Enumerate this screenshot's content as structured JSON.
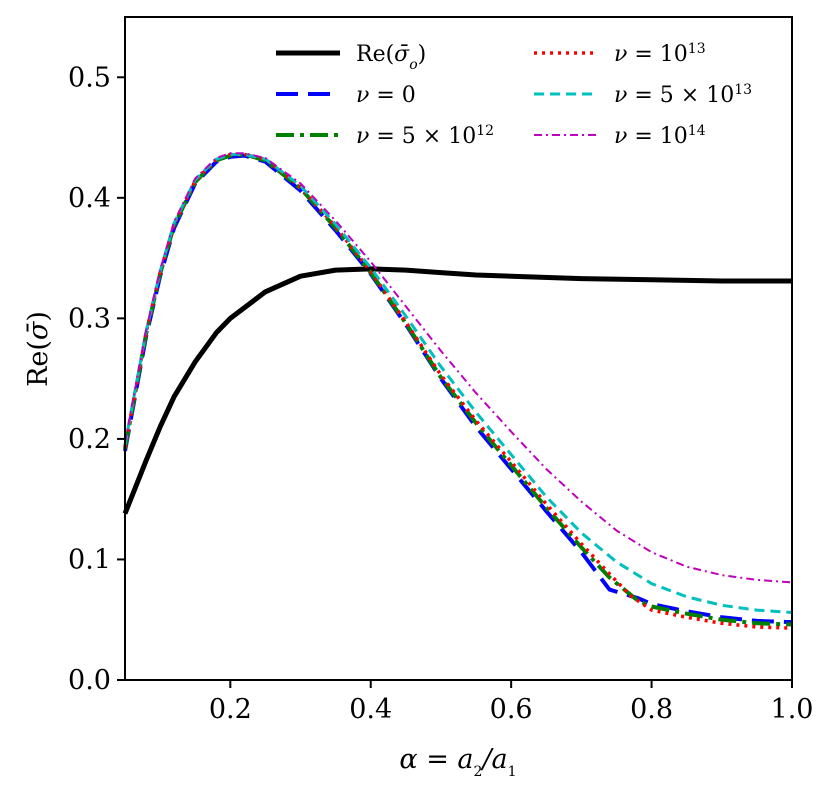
{
  "chart_data": {
    "type": "line",
    "xlabel": "α = a₂/a₁",
    "ylabel": "Re(σ̄)",
    "xlim": [
      0.05,
      1.0
    ],
    "ylim": [
      0.0,
      0.55
    ],
    "xticks": [
      0.2,
      0.4,
      0.6,
      0.8,
      1.0
    ],
    "xtick_labels": [
      "0.2",
      "0.4",
      "0.6",
      "0.8",
      "1.0"
    ],
    "yticks": [
      0.0,
      0.1,
      0.2,
      0.3,
      0.4,
      0.5
    ],
    "ytick_labels": [
      "0.0",
      "0.1",
      "0.2",
      "0.3",
      "0.4",
      "0.5"
    ],
    "grid": false,
    "legend_position": "top",
    "series": [
      {
        "name": "Re(σ̄ₒ)",
        "color": "#000000",
        "style": "solid",
        "x": [
          0.05,
          0.08,
          0.1,
          0.12,
          0.15,
          0.18,
          0.2,
          0.25,
          0.3,
          0.35,
          0.4,
          0.45,
          0.5,
          0.55,
          0.6,
          0.7,
          0.8,
          0.9,
          1.0
        ],
        "y": [
          0.138,
          0.182,
          0.21,
          0.235,
          0.264,
          0.288,
          0.3,
          0.322,
          0.335,
          0.34,
          0.341,
          0.34,
          0.338,
          0.336,
          0.335,
          0.333,
          0.332,
          0.331,
          0.331
        ]
      },
      {
        "name": "ν = 0",
        "color": "#0000ff",
        "style": "dashed",
        "x": [
          0.05,
          0.08,
          0.1,
          0.12,
          0.15,
          0.18,
          0.2,
          0.22,
          0.25,
          0.3,
          0.35,
          0.4,
          0.45,
          0.5,
          0.55,
          0.6,
          0.65,
          0.7,
          0.74,
          0.78,
          0.8,
          0.85,
          0.9,
          0.95,
          1.0
        ],
        "y": [
          0.19,
          0.285,
          0.335,
          0.375,
          0.412,
          0.43,
          0.434,
          0.435,
          0.43,
          0.406,
          0.373,
          0.337,
          0.295,
          0.25,
          0.21,
          0.175,
          0.14,
          0.106,
          0.075,
          0.068,
          0.063,
          0.057,
          0.052,
          0.049,
          0.048
        ]
      },
      {
        "name": "ν = 5 × 10¹²",
        "color": "#008000",
        "style": "dashdot",
        "x": [
          0.05,
          0.08,
          0.1,
          0.12,
          0.15,
          0.18,
          0.2,
          0.22,
          0.25,
          0.3,
          0.35,
          0.4,
          0.45,
          0.5,
          0.55,
          0.6,
          0.65,
          0.7,
          0.74,
          0.78,
          0.8,
          0.85,
          0.9,
          0.95,
          1.0
        ],
        "y": [
          0.192,
          0.287,
          0.337,
          0.377,
          0.413,
          0.431,
          0.435,
          0.436,
          0.431,
          0.408,
          0.375,
          0.338,
          0.296,
          0.251,
          0.213,
          0.178,
          0.143,
          0.11,
          0.085,
          0.066,
          0.061,
          0.055,
          0.05,
          0.047,
          0.046
        ]
      },
      {
        "name": "ν = 10¹³",
        "color": "#ff0000",
        "style": "dotted",
        "x": [
          0.05,
          0.08,
          0.1,
          0.12,
          0.15,
          0.18,
          0.2,
          0.22,
          0.25,
          0.3,
          0.35,
          0.4,
          0.45,
          0.5,
          0.55,
          0.6,
          0.65,
          0.7,
          0.74,
          0.77,
          0.8,
          0.85,
          0.9,
          0.95,
          1.0
        ],
        "y": [
          0.193,
          0.288,
          0.338,
          0.378,
          0.414,
          0.432,
          0.436,
          0.436,
          0.432,
          0.409,
          0.376,
          0.339,
          0.297,
          0.253,
          0.215,
          0.181,
          0.146,
          0.113,
          0.088,
          0.07,
          0.058,
          0.052,
          0.047,
          0.044,
          0.043
        ]
      },
      {
        "name": "ν = 5 × 10¹³",
        "color": "#00bfbf",
        "style": "dashed-short",
        "x": [
          0.05,
          0.08,
          0.1,
          0.12,
          0.15,
          0.18,
          0.2,
          0.22,
          0.25,
          0.3,
          0.35,
          0.4,
          0.45,
          0.5,
          0.55,
          0.6,
          0.65,
          0.7,
          0.75,
          0.8,
          0.85,
          0.9,
          0.95,
          1.0
        ],
        "y": [
          0.195,
          0.289,
          0.339,
          0.379,
          0.415,
          0.432,
          0.436,
          0.436,
          0.432,
          0.41,
          0.378,
          0.342,
          0.302,
          0.26,
          0.222,
          0.187,
          0.152,
          0.122,
          0.098,
          0.08,
          0.069,
          0.062,
          0.058,
          0.056
        ]
      },
      {
        "name": "ν = 10¹⁴",
        "color": "#bf00bf",
        "style": "dashdot-thin",
        "x": [
          0.05,
          0.08,
          0.1,
          0.12,
          0.15,
          0.18,
          0.2,
          0.22,
          0.25,
          0.3,
          0.35,
          0.4,
          0.45,
          0.5,
          0.55,
          0.6,
          0.65,
          0.7,
          0.75,
          0.8,
          0.85,
          0.9,
          0.95,
          1.0
        ],
        "y": [
          0.197,
          0.29,
          0.34,
          0.38,
          0.416,
          0.433,
          0.437,
          0.437,
          0.433,
          0.412,
          0.381,
          0.347,
          0.31,
          0.273,
          0.238,
          0.206,
          0.175,
          0.148,
          0.124,
          0.106,
          0.094,
          0.087,
          0.083,
          0.081
        ]
      }
    ]
  }
}
